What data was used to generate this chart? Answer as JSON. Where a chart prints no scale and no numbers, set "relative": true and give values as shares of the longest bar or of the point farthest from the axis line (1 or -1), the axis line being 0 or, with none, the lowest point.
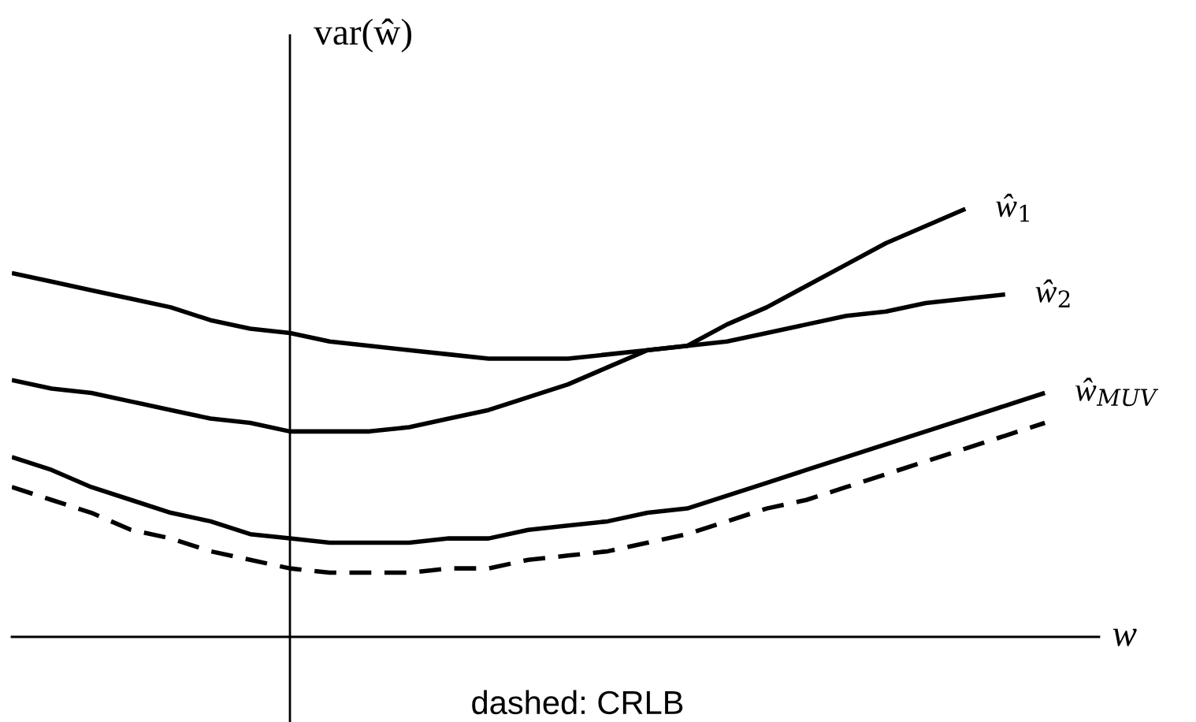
{
  "chart_data": {
    "type": "line",
    "relative": true,
    "xlabel": "w",
    "ylabel": "var(ŵ)",
    "categories": [
      null,
      null,
      null,
      null,
      null,
      null,
      null,
      null,
      null,
      null,
      null,
      null,
      null,
      null,
      null,
      null,
      null,
      null,
      null,
      null,
      null,
      null,
      null,
      null,
      null,
      null,
      null
    ],
    "series": [
      {
        "name": "ŵ$_{1}$",
        "color": "#000000",
        "line_style": "solid",
        "values": [
          0.6,
          0.58,
          0.57,
          0.55,
          0.53,
          0.51,
          0.5,
          0.48,
          0.48,
          0.48,
          0.49,
          0.51,
          0.53,
          0.56,
          0.59,
          0.63,
          0.67,
          0.68,
          0.73,
          0.77,
          0.82,
          0.87,
          0.92,
          0.96,
          1.0,
          null,
          null
        ]
      },
      {
        "name": "ŵ$_{2}$",
        "color": "#000000",
        "line_style": "solid",
        "values": [
          0.85,
          0.83,
          0.81,
          0.79,
          0.77,
          0.74,
          0.72,
          0.71,
          0.69,
          0.68,
          0.67,
          0.66,
          0.65,
          0.65,
          0.65,
          0.66,
          0.67,
          0.68,
          0.69,
          0.71,
          0.73,
          0.75,
          0.76,
          0.78,
          0.79,
          0.8,
          null
        ]
      },
      {
        "name": "ŵ$_{MUV}$",
        "color": "#000000",
        "line_style": "solid",
        "values": [
          0.42,
          0.39,
          0.35,
          0.32,
          0.29,
          0.27,
          0.24,
          0.23,
          0.22,
          0.22,
          0.22,
          0.23,
          0.23,
          0.25,
          0.26,
          0.27,
          0.29,
          0.3,
          0.33,
          0.36,
          0.39,
          0.42,
          0.45,
          0.48,
          0.51,
          0.54,
          0.57
        ]
      },
      {
        "color": "#000000",
        "line_style": "dashed",
        "values": [
          0.35,
          0.32,
          0.29,
          0.25,
          0.23,
          0.2,
          0.18,
          0.16,
          0.15,
          0.15,
          0.15,
          0.16,
          0.16,
          0.18,
          0.19,
          0.2,
          0.22,
          0.24,
          0.27,
          0.3,
          0.32,
          0.35,
          0.38,
          0.41,
          0.44,
          0.47,
          0.5
        ]
      }
    ],
    "annotations": [
      "dashed: CRLB"
    ],
    "legend": false,
    "marker": "none"
  }
}
